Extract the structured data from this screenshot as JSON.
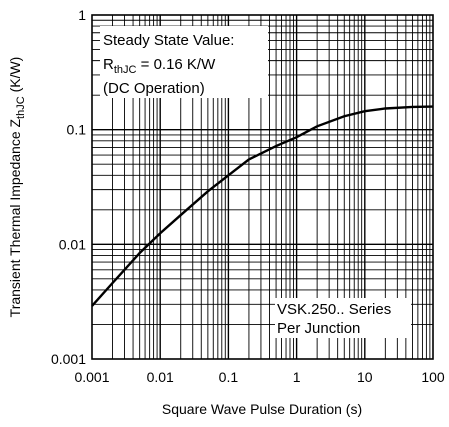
{
  "chart_data": {
    "type": "line",
    "title": "",
    "xlabel": "Square Wave Pulse Duration (s)",
    "ylabel": {
      "main": "Transient Thermal Impedance Z",
      "sub": "thJC",
      "unit": " (K/W)"
    },
    "x_scale": "log",
    "y_scale": "log",
    "xlim": [
      0.001,
      100
    ],
    "ylim": [
      0.001,
      1
    ],
    "grid": true,
    "x_ticks": [
      "0.001",
      "0.01",
      "0.1",
      "1",
      "10",
      "100"
    ],
    "y_ticks": [
      "1",
      "0.1",
      "0.01",
      "0.001"
    ],
    "series": [
      {
        "x": [
          0.001,
          0.002,
          0.005,
          0.01,
          0.02,
          0.05,
          0.1,
          0.2,
          0.5,
          1,
          2,
          5,
          10,
          20,
          50,
          100
        ],
        "y": [
          0.0029,
          0.0046,
          0.0084,
          0.0125,
          0.018,
          0.029,
          0.04,
          0.055,
          0.072,
          0.086,
          0.107,
          0.131,
          0.145,
          0.153,
          0.158,
          0.159
        ]
      }
    ],
    "annotations": {
      "steady_state": {
        "line1": "Steady State Value:",
        "r_main": "R",
        "r_sub": "thJC",
        "r_value": " = 0.16 K/W",
        "line3": "(DC Operation)"
      },
      "series_label": {
        "line1": "VSK.250.. Series",
        "line2": "Per Junction"
      }
    }
  }
}
